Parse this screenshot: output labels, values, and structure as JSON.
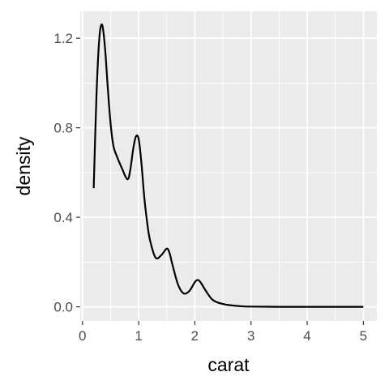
{
  "chart_data": {
    "type": "line",
    "title": "",
    "xlabel": "carat",
    "ylabel": "density",
    "xlim": [
      -0.04,
      5.24
    ],
    "ylim": [
      -0.063,
      1.32
    ],
    "x_ticks": [
      0,
      1,
      2,
      3,
      4,
      5
    ],
    "x_tick_labels": [
      "0",
      "1",
      "2",
      "3",
      "4",
      "5"
    ],
    "y_ticks": [
      0.0,
      0.4,
      0.8,
      1.2
    ],
    "y_tick_labels": [
      "0.0",
      "0.4",
      "0.8",
      "1.2"
    ],
    "grid": true,
    "panel_background": "#ebebeb",
    "grid_color": "#ffffff",
    "line_color": "#000000",
    "series": [
      {
        "x": [
          0.2,
          0.25,
          0.3,
          0.35,
          0.4,
          0.45,
          0.5,
          0.55,
          0.6,
          0.7,
          0.8,
          0.85,
          0.9,
          0.95,
          1.0,
          1.05,
          1.1,
          1.15,
          1.2,
          1.3,
          1.4,
          1.5,
          1.55,
          1.6,
          1.7,
          1.8,
          1.9,
          2.0,
          2.05,
          2.1,
          2.2,
          2.3,
          2.4,
          2.5,
          2.6,
          2.8,
          3.0,
          3.5,
          4.0,
          4.5,
          5.0
        ],
        "y": [
          0.53,
          0.95,
          1.2,
          1.26,
          1.16,
          0.98,
          0.82,
          0.72,
          0.68,
          0.62,
          0.57,
          0.61,
          0.7,
          0.76,
          0.75,
          0.64,
          0.49,
          0.38,
          0.3,
          0.22,
          0.23,
          0.26,
          0.24,
          0.19,
          0.1,
          0.06,
          0.07,
          0.11,
          0.12,
          0.11,
          0.07,
          0.035,
          0.02,
          0.013,
          0.008,
          0.003,
          0.001,
          0.0,
          0.0,
          0.0,
          0.0
        ]
      }
    ]
  }
}
